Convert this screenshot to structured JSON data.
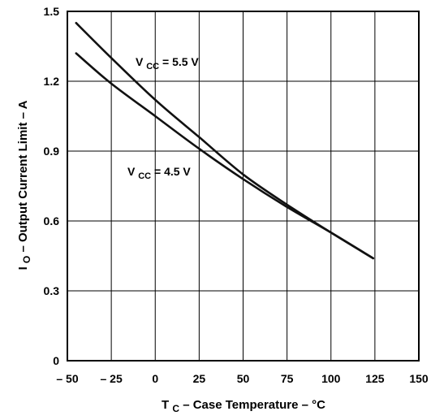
{
  "chart_data": {
    "type": "line",
    "xlabel": {
      "prefix": "T",
      "sub": "C",
      "suffix": " – Case Temperature – °C"
    },
    "ylabel": {
      "prefix": "I",
      "sub": "O",
      "suffix": " – Output Current Limit – A"
    },
    "xlim": [
      -50,
      150
    ],
    "ylim": [
      0,
      1.5
    ],
    "x_ticks": [
      -50,
      -25,
      0,
      25,
      50,
      75,
      100,
      125,
      150
    ],
    "x_tick_labels": [
      "– 50",
      "– 25",
      "0",
      "25",
      "50",
      "75",
      "100",
      "125",
      "150"
    ],
    "y_ticks": [
      0,
      0.3,
      0.6,
      0.9,
      1.2,
      1.5
    ],
    "y_tick_labels": [
      "0",
      "0.3",
      "0.6",
      "0.9",
      "1.2",
      "1.5"
    ],
    "grid": true,
    "series": [
      {
        "name": "VCC = 5.5 V",
        "label_prefix": "V",
        "label_sub": "CC",
        "label_suffix": " = 5.5 V",
        "x": [
          -45,
          -25,
          0,
          25,
          50,
          75,
          100,
          124
        ],
        "y": [
          1.45,
          1.3,
          1.12,
          0.96,
          0.8,
          0.67,
          0.55,
          0.44
        ]
      },
      {
        "name": "VCC = 4.5 V",
        "label_prefix": "V",
        "label_sub": "CC",
        "label_suffix": " = 4.5 V",
        "x": [
          -45,
          -25,
          0,
          25,
          50,
          75,
          100,
          124
        ],
        "y": [
          1.32,
          1.19,
          1.05,
          0.91,
          0.78,
          0.66,
          0.55,
          0.44
        ]
      }
    ]
  }
}
